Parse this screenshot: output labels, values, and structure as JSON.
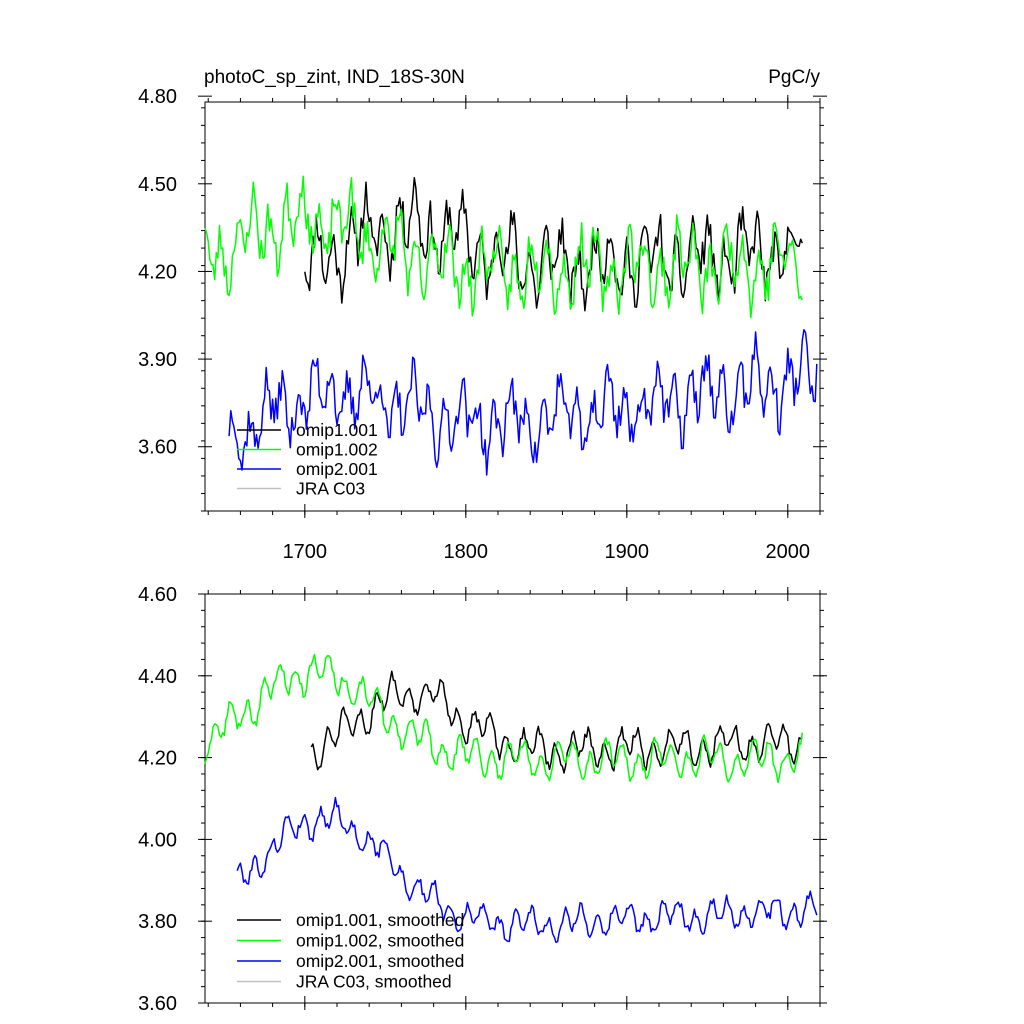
{
  "chart_data": [
    {
      "type": "line",
      "title": "photoC_sp_zint, IND_18S-30N",
      "units": "PgC/y",
      "xlim": [
        1638,
        2020
      ],
      "ylim": [
        3.38,
        4.78
      ],
      "x_ticks": [
        1700,
        1800,
        1900,
        2000
      ],
      "x_tick_labels": [
        "1700",
        "1800",
        "1900",
        "2000"
      ],
      "y_ticks": [
        3.6,
        3.9,
        4.2,
        4.5,
        4.8
      ],
      "y_tick_labels": [
        "3.60",
        "3.90",
        "4.20",
        "4.50",
        "4.80"
      ],
      "legend_position": "bottom-left",
      "series": [
        {
          "name": "omip1.001",
          "color": "#000000",
          "x_start": 1700,
          "x_end": 2009,
          "mean_start": 4.16,
          "mean_end": 4.27,
          "hump_peak": 4.45,
          "hump_center": 1760,
          "hump_width": 55,
          "wiggle": 0.14,
          "noise": 0.06,
          "seed": 11
        },
        {
          "name": "omip1.002",
          "color": "#00ff00",
          "x_start": 1638,
          "x_end": 2009,
          "mean_start": 4.18,
          "mean_end": 4.23,
          "hump_peak": 4.42,
          "hump_center": 1700,
          "hump_width": 60,
          "wiggle": 0.14,
          "noise": 0.06,
          "seed": 23
        },
        {
          "name": "omip2.001",
          "color": "#0000ff",
          "x_start": 1653,
          "x_end": 2018,
          "mean_start": 3.52,
          "mean_end": 3.84,
          "hump_peak": 4.05,
          "hump_center": 1710,
          "hump_width": 70,
          "wiggle": 0.13,
          "noise": 0.06,
          "seed": 37
        },
        {
          "name": "JRA C03",
          "color": "#c0c0c0",
          "x_start": null,
          "x_end": null
        }
      ]
    },
    {
      "type": "line",
      "title": "",
      "xlim": [
        1638,
        2020
      ],
      "ylim": [
        3.6,
        4.6
      ],
      "x_ticks": [
        1700,
        1800,
        1900,
        2000
      ],
      "x_tick_labels": [],
      "y_ticks": [
        3.6,
        3.8,
        4.0,
        4.2,
        4.4,
        4.6
      ],
      "y_tick_labels": [
        "3.60",
        "3.80",
        "4.00",
        "4.20",
        "4.40",
        "4.60"
      ],
      "legend_position": "bottom-left",
      "series": [
        {
          "name": "omip1.001, smoothed",
          "color": "#000000",
          "x_start": 1704,
          "x_end": 2009,
          "mean_start": 4.19,
          "mean_end": 4.24,
          "hump_peak": 4.4,
          "hump_center": 1765,
          "hump_width": 45,
          "wiggle": 0.055,
          "noise": 0.012,
          "seed": 51
        },
        {
          "name": "omip1.002, smoothed",
          "color": "#00ff00",
          "x_start": 1638,
          "x_end": 2009,
          "mean_start": 4.19,
          "mean_end": 4.2,
          "hump_peak": 4.42,
          "hump_center": 1705,
          "hump_width": 55,
          "wiggle": 0.055,
          "noise": 0.012,
          "seed": 63
        },
        {
          "name": "omip2.001, smoothed",
          "color": "#0000ff",
          "x_start": 1658,
          "x_end": 2018,
          "mean_start": 3.75,
          "mean_end": 3.83,
          "hump_peak": 4.12,
          "hump_center": 1710,
          "hump_width": 60,
          "wiggle": 0.045,
          "noise": 0.012,
          "seed": 79
        },
        {
          "name": "JRA C03, smoothed",
          "color": "#c0c0c0",
          "x_start": null,
          "x_end": null
        }
      ]
    }
  ]
}
